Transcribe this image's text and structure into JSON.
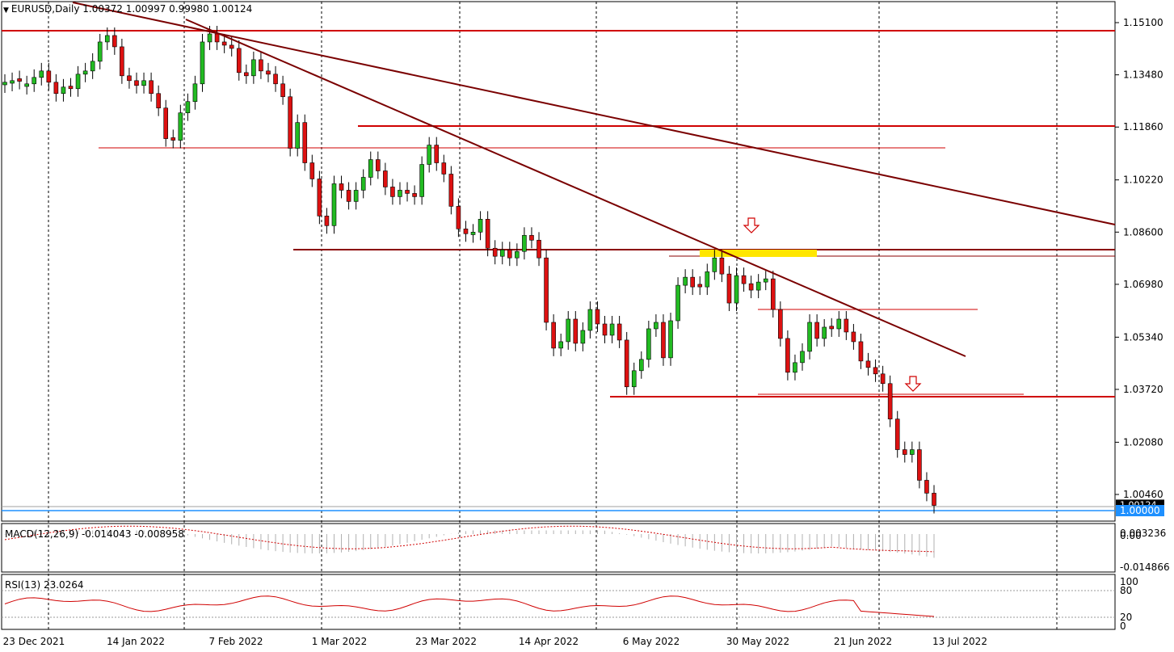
{
  "header": {
    "dropdown_icon": "triangle-down-icon",
    "symbol": "EURUSD,Daily",
    "ohlc": "1.00372 1.00997 0.99980 1.00124"
  },
  "chart_data": {
    "type": "candlestick",
    "title": "EURUSD,Daily",
    "ylim": [
      0.995,
      1.158
    ],
    "y_ticks": [
      "1.15100",
      "1.13480",
      "1.11860",
      "1.10220",
      "1.08600",
      "1.06980",
      "1.05340",
      "1.03720",
      "1.02080",
      "1.00460"
    ],
    "current_price_label": "1.00124",
    "price_line_label": "1.00000",
    "x_ticks": [
      "23 Dec 2021",
      "14 Jan 2022",
      "7 Feb 2022",
      "1 Mar 2022",
      "23 Mar 2022",
      "14 Apr 2022",
      "6 May 2022",
      "30 May 2022",
      "21 Jun 2022",
      "13 Jul 2022"
    ],
    "candles_close": [
      1.1325,
      1.133,
      1.1328,
      1.132,
      1.134,
      1.136,
      1.1325,
      1.129,
      1.131,
      1.1305,
      1.135,
      1.136,
      1.139,
      1.145,
      1.147,
      1.1435,
      1.1345,
      1.133,
      1.1315,
      1.133,
      1.129,
      1.1245,
      1.115,
      1.1145,
      1.123,
      1.1265,
      1.132,
      1.145,
      1.1475,
      1.145,
      1.144,
      1.143,
      1.1355,
      1.1345,
      1.1395,
      1.136,
      1.135,
      1.132,
      1.128,
      1.112,
      1.12,
      1.1075,
      1.1025,
      1.091,
      1.088,
      1.101,
      1.099,
      1.0955,
      1.099,
      1.103,
      1.1085,
      1.105,
      1.1,
      1.097,
      1.099,
      1.098,
      1.097,
      1.107,
      1.113,
      1.1075,
      1.104,
      1.094,
      1.087,
      1.0855,
      1.086,
      1.09,
      1.081,
      1.0785,
      1.0805,
      1.078,
      1.08,
      1.085,
      1.0835,
      1.078,
      1.058,
      1.05,
      1.052,
      1.059,
      1.0515,
      1.0555,
      1.062,
      1.0575,
      1.054,
      1.0575,
      1.0525,
      1.038,
      1.043,
      1.0465,
      1.056,
      1.058,
      1.047,
      1.0585,
      1.0695,
      1.072,
      1.069,
      1.069,
      1.0737,
      1.078,
      1.073,
      1.064,
      1.0725,
      1.07,
      1.068,
      1.0705,
      1.0715,
      1.062,
      1.053,
      1.0425,
      1.0455,
      1.049,
      1.058,
      1.053,
      1.0565,
      1.056,
      1.059,
      1.055,
      1.052,
      1.046,
      1.044,
      1.042,
      1.039,
      1.028,
      1.0185,
      1.017,
      1.0185,
      1.009,
      1.005,
      1.0012
    ],
    "candles_color": [
      "g",
      "g",
      "r",
      "g",
      "g",
      "g",
      "r",
      "r",
      "g",
      "r",
      "g",
      "g",
      "g",
      "g",
      "g",
      "r",
      "r",
      "r",
      "r",
      "g",
      "r",
      "r",
      "r",
      "r",
      "g",
      "g",
      "g",
      "g",
      "g",
      "r",
      "r",
      "r",
      "r",
      "r",
      "g",
      "r",
      "r",
      "r",
      "r",
      "r",
      "g",
      "r",
      "r",
      "r",
      "r",
      "g",
      "r",
      "r",
      "g",
      "g",
      "g",
      "r",
      "r",
      "r",
      "g",
      "r",
      "r",
      "g",
      "g",
      "r",
      "r",
      "r",
      "r",
      "r",
      "g",
      "g",
      "r",
      "r",
      "g",
      "r",
      "g",
      "g",
      "r",
      "r",
      "r",
      "r",
      "g",
      "g",
      "r",
      "g",
      "g",
      "r",
      "r",
      "g",
      "r",
      "r",
      "g",
      "g",
      "g",
      "g",
      "r",
      "g",
      "g",
      "g",
      "r",
      "r",
      "g",
      "g",
      "r",
      "r",
      "g",
      "r",
      "r",
      "g",
      "g",
      "r",
      "r",
      "r",
      "g",
      "g",
      "g",
      "r",
      "g",
      "r",
      "g",
      "r",
      "r",
      "r",
      "r",
      "r",
      "r",
      "r",
      "r",
      "r",
      "g",
      "r",
      "r",
      "r"
    ],
    "annotations": {
      "down_arrow_icon": "down-arrow-icon",
      "highlight_zone_color": "#ffe600",
      "line_color": "#d00000",
      "trendline_color": "#7a0000"
    },
    "macd": {
      "label": "MACD(12,26,9) -0.014043 -0.008958",
      "ticks": [
        "0.003236",
        "0.00",
        "-0.014866"
      ]
    },
    "rsi": {
      "label": "RSI(13) 23.0264",
      "ticks": [
        "100",
        "80",
        "20",
        "0"
      ]
    }
  }
}
